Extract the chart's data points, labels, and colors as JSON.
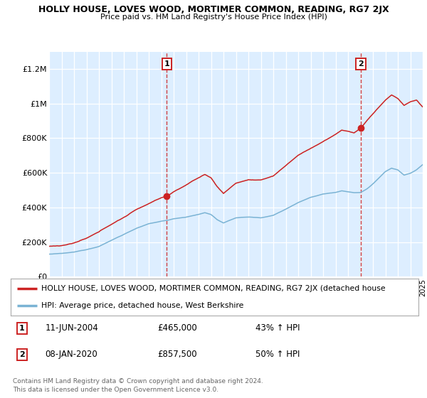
{
  "title": "HOLLY HOUSE, LOVES WOOD, MORTIMER COMMON, READING, RG7 2JX",
  "subtitle": "Price paid vs. HM Land Registry's House Price Index (HPI)",
  "ylim": [
    0,
    1300000
  ],
  "yticks": [
    0,
    200000,
    400000,
    600000,
    800000,
    1000000,
    1200000
  ],
  "ytick_labels": [
    "£0",
    "£200K",
    "£400K",
    "£600K",
    "£800K",
    "£1M",
    "£1.2M"
  ],
  "xmin": 1995,
  "xmax": 2025,
  "sale1_year": 2004.44,
  "sale1_price": 465000,
  "sale2_year": 2020.02,
  "sale2_price": 857500,
  "red_color": "#cc2222",
  "blue_color": "#7ab3d4",
  "plot_bg": "#ddeeff",
  "legend_label_red": "HOLLY HOUSE, LOVES WOOD, MORTIMER COMMON, READING, RG7 2JX (detached house",
  "legend_label_blue": "HPI: Average price, detached house, West Berkshire",
  "note1_label": "1",
  "note1_date": "11-JUN-2004",
  "note1_price": "£465,000",
  "note1_hpi": "43% ↑ HPI",
  "note2_label": "2",
  "note2_date": "08-JAN-2020",
  "note2_price": "£857,500",
  "note2_hpi": "50% ↑ HPI",
  "copyright": "Contains HM Land Registry data © Crown copyright and database right 2024.\nThis data is licensed under the Open Government Licence v3.0."
}
